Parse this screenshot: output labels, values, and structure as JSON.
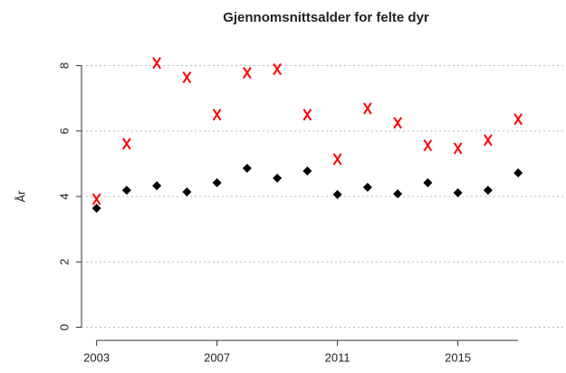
{
  "chart_data": {
    "type": "scatter",
    "title": "Gjennomsnittsalder for felte dyr",
    "y_label": "År",
    "x": [
      2003,
      2004,
      2005,
      2006,
      2007,
      2008,
      2009,
      2010,
      2011,
      2012,
      2013,
      2014,
      2015,
      2016,
      2017
    ],
    "series": [
      {
        "color": "#000000",
        "marker": "diamond",
        "values": [
          3.64,
          4.19,
          4.33,
          4.14,
          4.42,
          4.86,
          4.56,
          4.78,
          4.06,
          4.28,
          4.08,
          4.42,
          4.11,
          4.19,
          4.72
        ]
      },
      {
        "color": "#ff0000",
        "marker": "x",
        "values": [
          3.92,
          5.61,
          8.08,
          7.64,
          6.5,
          7.78,
          7.89,
          6.5,
          5.14,
          6.69,
          6.25,
          5.56,
          5.47,
          5.72,
          6.36
        ]
      }
    ],
    "xlim": [
      2002.5,
      2018.5
    ],
    "xticks": [
      2003,
      2007,
      2011,
      2015
    ],
    "ylim": [
      -0.4,
      8.4
    ],
    "yticks": [
      0,
      2,
      4,
      6,
      8
    ],
    "grid": true
  }
}
